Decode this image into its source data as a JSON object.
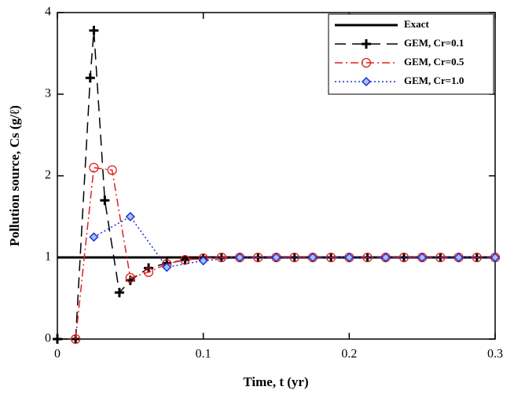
{
  "chart_data": {
    "type": "line",
    "x_label": "Time, t (yr)",
    "y_label": "Pollution source, Cs (g/ℓ)",
    "xlim": [
      0,
      0.3
    ],
    "ylim": [
      0,
      4
    ],
    "xticks": [
      0,
      0.1,
      0.2,
      0.3
    ],
    "yticks": [
      0,
      1,
      2,
      3,
      4
    ],
    "legend": "upper right",
    "series": [
      {
        "name": "Exact",
        "color": "#000000",
        "width": 3,
        "dash": "none",
        "marker": "none",
        "x": [
          0,
          0.3
        ],
        "values": [
          1,
          1
        ]
      },
      {
        "name": "GEM, Cr=0.1",
        "color": "#000000",
        "width": 1.5,
        "dash": "14 8",
        "marker": "plus",
        "x": [
          0,
          0.0125,
          0.0225,
          0.025,
          0.0325,
          0.0425,
          0.05,
          0.0625,
          0.075,
          0.0875,
          0.1,
          0.1125,
          0.125,
          0.1375,
          0.15,
          0.1625,
          0.175,
          0.1875,
          0.2,
          0.2125,
          0.225,
          0.2375,
          0.25,
          0.2625,
          0.275,
          0.2875,
          0.3
        ],
        "values": [
          0,
          0,
          3.2,
          3.78,
          1.7,
          0.57,
          0.72,
          0.87,
          0.93,
          0.97,
          0.99,
          1,
          1,
          1,
          1,
          1,
          1,
          1,
          1,
          1,
          1,
          1,
          1,
          1,
          1,
          1,
          1
        ]
      },
      {
        "name": "GEM, Cr=0.5",
        "color": "#e02020",
        "width": 1.5,
        "dash": "10 4 2 4",
        "marker": "circle",
        "x": [
          0.0125,
          0.025,
          0.0375,
          0.05,
          0.0625,
          0.075,
          0.0875,
          0.1,
          0.1125,
          0.125,
          0.1375,
          0.15,
          0.1625,
          0.175,
          0.1875,
          0.2,
          0.2125,
          0.225,
          0.2375,
          0.25,
          0.2625,
          0.275,
          0.2875,
          0.3
        ],
        "values": [
          0,
          2.1,
          2.07,
          0.75,
          0.82,
          0.92,
          0.97,
          0.99,
          1,
          1,
          1,
          1,
          1,
          1,
          1,
          1,
          1,
          1,
          1,
          1,
          1,
          1,
          1,
          1
        ]
      },
      {
        "name": "GEM, Cr=1.0",
        "color": "#1a2fd0",
        "width": 1.5,
        "dash": "2 3",
        "marker": "diamond",
        "x": [
          0.025,
          0.05,
          0.075,
          0.1,
          0.125,
          0.15,
          0.175,
          0.2,
          0.225,
          0.25,
          0.275,
          0.3
        ],
        "values": [
          1.25,
          1.5,
          0.88,
          0.96,
          1,
          1,
          1,
          1,
          1,
          1,
          1,
          1
        ]
      }
    ]
  }
}
